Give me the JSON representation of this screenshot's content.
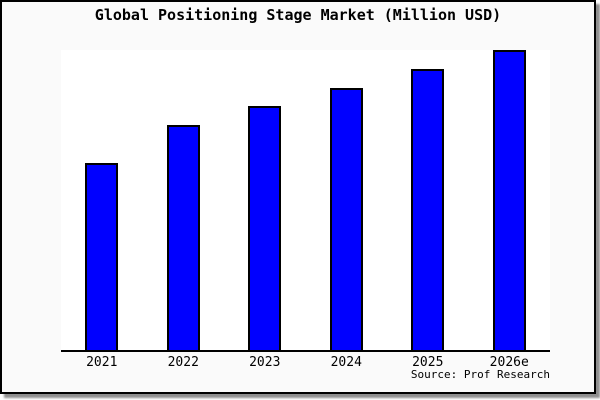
{
  "title": "Global Positioning Stage Market (Million USD)",
  "source": "Source: Prof Research",
  "colors": {
    "bar_fill": "#0000ff",
    "bar_border": "#000000",
    "frame_bg": "#fafafa",
    "plot_bg": "#ffffff",
    "axis": "#000000",
    "border": "#000000",
    "shadow": "#8e8e8e",
    "text": "#000000"
  },
  "chart_data": {
    "type": "bar",
    "title": "Global Positioning Stage Market (Million USD)",
    "categories": [
      "2021",
      "2022",
      "2023",
      "2024",
      "2025",
      "2026e"
    ],
    "values": [
      100,
      120,
      130,
      140,
      150,
      160
    ],
    "value_note": "y-axis has no tick labels; values estimated from relative bar heights",
    "xlabel": "",
    "ylabel": "",
    "ylim": [
      0,
      160
    ],
    "grid": false,
    "legend": false,
    "source": "Source: Prof Research"
  }
}
